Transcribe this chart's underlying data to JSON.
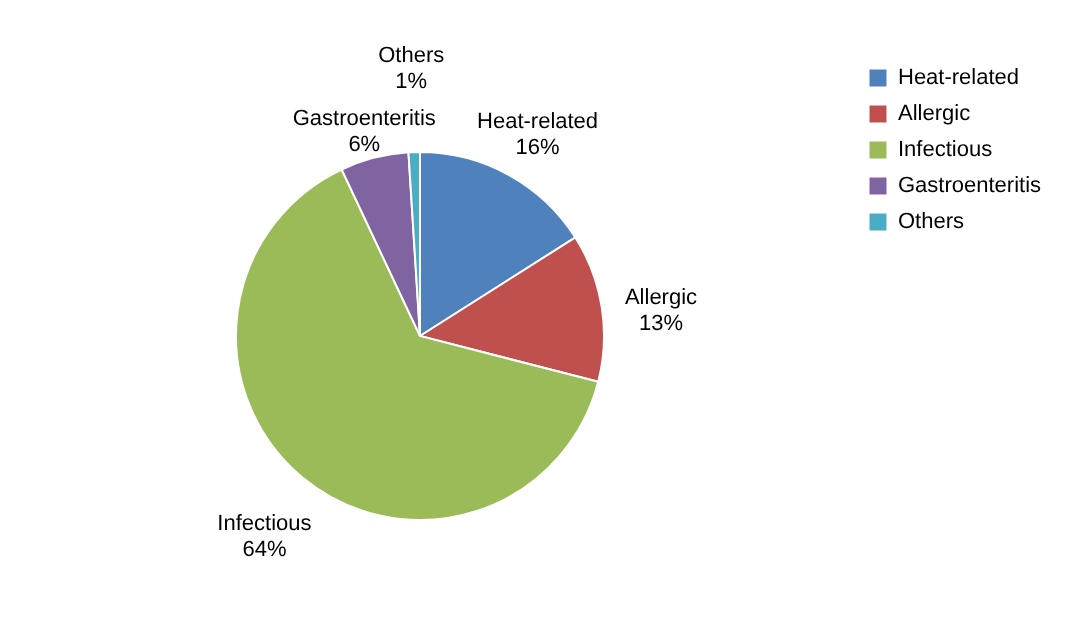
{
  "chart_data": {
    "type": "pie",
    "categories": [
      "Heat-related",
      "Allergic",
      "Infectious",
      "Gastroenteritis",
      "Others"
    ],
    "values": [
      16,
      13,
      64,
      6,
      1
    ],
    "colors": [
      "#4f81bd",
      "#c0504d",
      "#9bbb59",
      "#8064a2",
      "#4bacc6"
    ],
    "value_labels": [
      "16%",
      "13%",
      "64%",
      "6%",
      "1%"
    ],
    "legend": "right"
  }
}
